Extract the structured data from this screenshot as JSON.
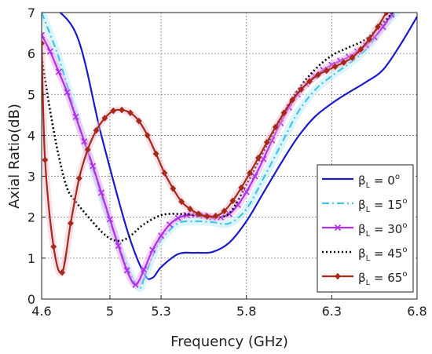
{
  "chart_data": {
    "type": "line",
    "title": "",
    "xlabel": "Frequency (GHz)",
    "ylabel": "Axial Ratio(dB)",
    "xlim": [
      4.6,
      6.8
    ],
    "ylim": [
      0,
      7
    ],
    "x_ticks": [
      4.6,
      5,
      5.3,
      5.8,
      6.3,
      6.8
    ],
    "x_tick_labels": [
      "4.6",
      "5",
      "5.3",
      "5.8",
      "6.3",
      "6.8"
    ],
    "y_ticks": [
      0,
      1,
      2,
      3,
      4,
      5,
      6,
      7
    ],
    "y_tick_labels": [
      "0",
      "1",
      "2",
      "3",
      "4",
      "5",
      "6",
      "7"
    ],
    "grid": true,
    "legend_position": "right",
    "series": [
      {
        "name": "0",
        "legend": {
          "beta": "β",
          "sub": "L",
          "eq": " = 0",
          "sup": "o"
        },
        "color": "#1a1acc",
        "style": "solid",
        "marker": "none",
        "x": [
          4.6,
          4.8,
          4.95,
          5.1,
          5.2,
          5.25,
          5.3,
          5.4,
          5.5,
          5.6,
          5.7,
          5.8,
          5.9,
          6.0,
          6.1,
          6.2,
          6.3,
          6.4,
          6.5,
          6.6,
          6.7,
          6.8
        ],
        "y": [
          7.3,
          6.5,
          4.0,
          1.7,
          0.62,
          0.52,
          0.78,
          1.1,
          1.13,
          1.15,
          1.38,
          1.9,
          2.6,
          3.3,
          3.95,
          4.45,
          4.78,
          5.05,
          5.3,
          5.6,
          6.2,
          6.9
        ]
      },
      {
        "name": "15",
        "legend": {
          "beta": "β",
          "sub": "L",
          "eq": " = 15",
          "sup": "o"
        },
        "color": "#44c4e8",
        "style": "dashdot",
        "marker": "none",
        "x": [
          4.6,
          4.7,
          4.8,
          4.9,
          5.0,
          5.1,
          5.17,
          5.2,
          5.25,
          5.3,
          5.4,
          5.5,
          5.6,
          5.7,
          5.8,
          5.9,
          6.0,
          6.1,
          6.2,
          6.3,
          6.4,
          6.5,
          6.6,
          6.7
        ],
        "y": [
          7.0,
          5.9,
          4.5,
          3.2,
          1.9,
          0.8,
          0.28,
          0.5,
          1.05,
          1.45,
          1.85,
          1.9,
          1.88,
          1.85,
          2.2,
          2.95,
          3.75,
          4.55,
          5.1,
          5.45,
          5.75,
          6.1,
          6.65,
          7.1
        ]
      },
      {
        "name": "30",
        "legend": {
          "beta": "β",
          "sub": "L",
          "eq": " = 30",
          "sup": "o"
        },
        "color": "#b030e8",
        "style": "solid",
        "marker": "x",
        "x": [
          4.6,
          4.65,
          4.7,
          4.75,
          4.8,
          4.85,
          4.9,
          4.95,
          5.0,
          5.05,
          5.1,
          5.15,
          5.2,
          5.25,
          5.3,
          5.35,
          5.4,
          5.45,
          5.5,
          5.55,
          5.6,
          5.65,
          5.7,
          5.75,
          5.8,
          5.85,
          5.9,
          5.95,
          6.0,
          6.05,
          6.1,
          6.15,
          6.2,
          6.25,
          6.3,
          6.35,
          6.4,
          6.45,
          6.5,
          6.55,
          6.6,
          6.65
        ],
        "y": [
          6.45,
          6.05,
          5.55,
          5.05,
          4.45,
          3.85,
          3.25,
          2.6,
          1.95,
          1.3,
          0.7,
          0.35,
          0.72,
          1.2,
          1.55,
          1.82,
          1.98,
          2.05,
          2.06,
          2.04,
          2.0,
          2.0,
          2.08,
          2.3,
          2.62,
          3.0,
          3.42,
          3.88,
          4.3,
          4.68,
          5.0,
          5.25,
          5.45,
          5.6,
          5.72,
          5.82,
          5.92,
          6.05,
          6.2,
          6.4,
          6.65,
          6.95
        ]
      },
      {
        "name": "45",
        "legend": {
          "beta": "β",
          "sub": "L",
          "eq": " = 45",
          "sup": "o"
        },
        "color": "#000000",
        "style": "dotted",
        "marker": "none",
        "x": [
          4.6,
          4.65,
          4.7,
          4.75,
          4.8,
          4.85,
          4.9,
          4.95,
          5.0,
          5.05,
          5.1,
          5.15,
          5.2,
          5.3,
          5.4,
          5.5,
          5.6,
          5.7,
          5.8,
          5.9,
          6.0,
          6.1,
          6.2,
          6.3,
          6.4,
          6.5,
          6.6,
          6.7
        ],
        "y": [
          5.9,
          4.6,
          3.5,
          2.7,
          2.38,
          2.12,
          1.88,
          1.65,
          1.48,
          1.42,
          1.48,
          1.65,
          1.83,
          2.05,
          2.08,
          2.05,
          2.0,
          2.1,
          2.8,
          3.6,
          4.4,
          5.1,
          5.6,
          5.95,
          6.15,
          6.35,
          6.75,
          7.2
        ]
      },
      {
        "name": "65",
        "legend": {
          "beta": "β",
          "sub": "L",
          "eq": " = 65",
          "sup": "o"
        },
        "color": "#a52a1a",
        "style": "solid",
        "marker": "diamond",
        "x": [
          4.6,
          4.62,
          4.67,
          4.72,
          4.77,
          4.82,
          4.87,
          4.92,
          4.97,
          5.02,
          5.07,
          5.12,
          5.17,
          5.22,
          5.27,
          5.32,
          5.37,
          5.42,
          5.47,
          5.52,
          5.57,
          5.62,
          5.67,
          5.72,
          5.77,
          5.82,
          5.87,
          5.92,
          5.97,
          6.02,
          6.07,
          6.12,
          6.17,
          6.22,
          6.27,
          6.32,
          6.37,
          6.42,
          6.47,
          6.52,
          6.57,
          6.62
        ],
        "y": [
          6.25,
          3.4,
          1.28,
          0.65,
          1.85,
          2.95,
          3.65,
          4.12,
          4.42,
          4.6,
          4.62,
          4.55,
          4.35,
          4.0,
          3.55,
          3.08,
          2.7,
          2.38,
          2.2,
          2.08,
          2.02,
          2.03,
          2.15,
          2.4,
          2.72,
          3.08,
          3.45,
          3.83,
          4.2,
          4.55,
          4.87,
          5.12,
          5.32,
          5.48,
          5.58,
          5.68,
          5.78,
          5.9,
          6.1,
          6.35,
          6.65,
          7.0
        ]
      }
    ]
  }
}
